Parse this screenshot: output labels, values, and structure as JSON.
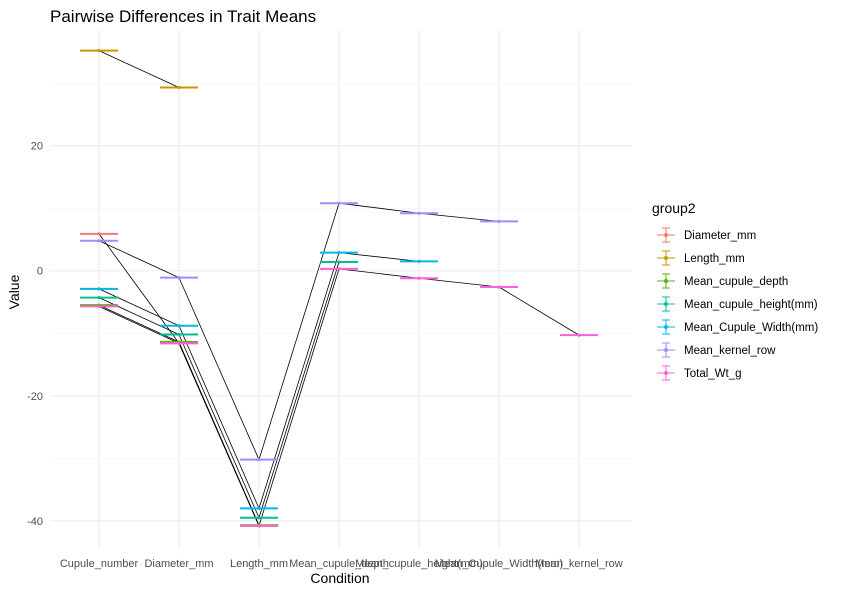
{
  "chart_data": {
    "type": "line",
    "title": "Pairwise Differences in Trait Means",
    "xlabel": "Condition",
    "ylabel": "Value",
    "ylim": [
      -44.5,
      38.5
    ],
    "yticks": [
      -40,
      -20,
      0,
      20
    ],
    "categories": [
      "Cupule_number",
      "Diameter_mm",
      "Length_mm",
      "Mean_cupule_depth",
      "Mean_cupule_height(mm)",
      "Mean_Cupule_Width(mm)",
      "Mean_kernel_row"
    ],
    "grid": true,
    "legend": {
      "title": "group2",
      "placement": "right"
    },
    "series": [
      {
        "name": "Diameter_mm",
        "color": "#F8766D",
        "points": [
          {
            "x": "Cupule_number",
            "y": 5.9
          },
          {
            "x": "Diameter_mm",
            "y": -11.6
          },
          {
            "x": "Length_mm",
            "y": -40.8
          }
        ]
      },
      {
        "name": "Length_mm",
        "color": "#C49A00",
        "points": [
          {
            "x": "Cupule_number",
            "y": 35.2
          },
          {
            "x": "Diameter_mm",
            "y": 29.3
          }
        ]
      },
      {
        "name": "Mean_cupule_depth",
        "color": "#53B400",
        "points": [
          {
            "x": "Cupule_number",
            "y": -5.5
          },
          {
            "x": "Diameter_mm",
            "y": -11.4
          },
          {
            "x": "Length_mm",
            "y": -40.7
          }
        ]
      },
      {
        "name": "Mean_cupule_height(mm)",
        "color": "#00C094",
        "points": [
          {
            "x": "Cupule_number",
            "y": -4.3
          },
          {
            "x": "Diameter_mm",
            "y": -10.2
          },
          {
            "x": "Length_mm",
            "y": -39.5
          },
          {
            "x": "Mean_cupule_depth",
            "y": 1.4
          }
        ]
      },
      {
        "name": "Mean_Cupule_Width(mm)",
        "color": "#00B6EB",
        "points": [
          {
            "x": "Cupule_number",
            "y": -2.9
          },
          {
            "x": "Diameter_mm",
            "y": -8.8
          },
          {
            "x": "Length_mm",
            "y": -38.0
          },
          {
            "x": "Mean_cupule_depth",
            "y": 2.9
          },
          {
            "x": "Mean_cupule_height(mm)",
            "y": 1.5
          }
        ]
      },
      {
        "name": "Mean_kernel_row",
        "color": "#A58AFF",
        "points": [
          {
            "x": "Cupule_number",
            "y": 4.8
          },
          {
            "x": "Diameter_mm",
            "y": -1.1
          },
          {
            "x": "Length_mm",
            "y": -30.2
          },
          {
            "x": "Mean_cupule_depth",
            "y": 10.8
          },
          {
            "x": "Mean_cupule_height(mm)",
            "y": 9.2
          },
          {
            "x": "Mean_Cupule_Width(mm)",
            "y": 7.9
          }
        ]
      },
      {
        "name": "Total_Wt_g",
        "color": "#FB61D7",
        "points": [
          {
            "x": "Cupule_number",
            "y": -5.7
          },
          {
            "x": "Diameter_mm",
            "y": -11.6
          },
          {
            "x": "Length_mm",
            "y": -40.8
          },
          {
            "x": "Mean_cupule_depth",
            "y": 0.3
          },
          {
            "x": "Mean_cupule_height(mm)",
            "y": -1.2
          },
          {
            "x": "Mean_Cupule_Width(mm)",
            "y": -2.6
          },
          {
            "x": "Mean_kernel_row",
            "y": -10.3
          }
        ]
      }
    ]
  }
}
